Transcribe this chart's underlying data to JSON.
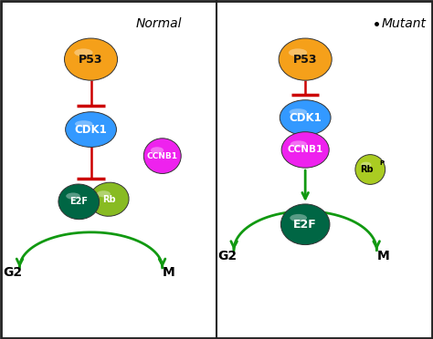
{
  "fig_width": 4.74,
  "fig_height": 3.72,
  "dpi": 100,
  "background_color": "#ffffff",
  "border_color": "#222222",
  "divider_color": "#222222",
  "normal_label": "Normal",
  "mutant_label": "Mutant",
  "p53_color": "#f5a01a",
  "p53_label": "P53",
  "cdk1_color": "#3399ff",
  "cdk1_label": "CDK1",
  "ccnb1_color": "#ee22ee",
  "ccnb1_label": "CCNB1",
  "e2f_color": "#006644",
  "e2f_label": "E2F",
  "rb_color": "#88bb33",
  "rb_label": "Rb",
  "rbp_color": "#aacc22",
  "rbp_label": "Rb",
  "rbp_sup": "P",
  "inhibit_color": "#cc0000",
  "activate_color": "#119911",
  "g2_label": "G2",
  "m_label": "M"
}
